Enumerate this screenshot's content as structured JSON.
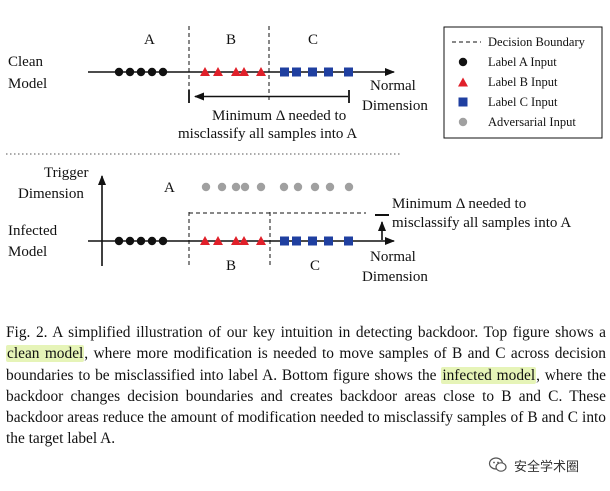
{
  "figure": {
    "top": {
      "model_label_line1": "Clean",
      "model_label_line2": "Model",
      "region_labels": [
        "A",
        "B",
        "C"
      ],
      "min_delta_line1": "Minimum Δ needed to",
      "min_delta_line2": "misclassify all samples into A",
      "axis_label_line1": "Normal",
      "axis_label_line2": "Dimension"
    },
    "bottom": {
      "trigger_label_line1": "Trigger",
      "trigger_label_line2": "Dimension",
      "model_label_line1": "Infected",
      "model_label_line2": "Model",
      "region_a_label": "A",
      "region_b_label": "B",
      "region_c_label": "C",
      "min_delta_line1": "Minimum Δ needed to",
      "min_delta_line2": "misclassify all samples into A",
      "axis_label_line1": "Normal",
      "axis_label_line2": "Dimension"
    },
    "legend": {
      "items": [
        {
          "label": "Decision Boundary",
          "marker": "dashed-line"
        },
        {
          "label": "Label A Input",
          "marker": "black-circle",
          "color": "#111111"
        },
        {
          "label": "Label B Input",
          "marker": "red-triangle",
          "color": "#e0202a"
        },
        {
          "label": "Label C Input",
          "marker": "blue-square",
          "color": "#1f3fa0"
        },
        {
          "label": "Adversarial Input",
          "marker": "gray-circle",
          "color": "#a0a0a0"
        }
      ]
    },
    "colors": {
      "label_a": "#111111",
      "label_b": "#e0202a",
      "label_c": "#1f3fa0",
      "adversarial": "#a0a0a0"
    }
  },
  "caption": {
    "seg1": "Fig. 2.  A simplified illustration of our key intuition in detecting backdoor. Top figure shows a ",
    "hl1": "clean model",
    "seg2": ", where more modification is needed to move samples of B and C across decision boundaries to be misclassified into label A. Bottom figure shows the ",
    "hl2": "infected model",
    "seg3": ", where the backdoor changes decision boundaries and creates backdoor areas close to B and C. These backdoor areas reduce the amount of modification needed to misclassify samples of B and C into the target label A."
  },
  "watermark": {
    "text": "安全学术圈",
    "icon": "wechat-icon"
  }
}
